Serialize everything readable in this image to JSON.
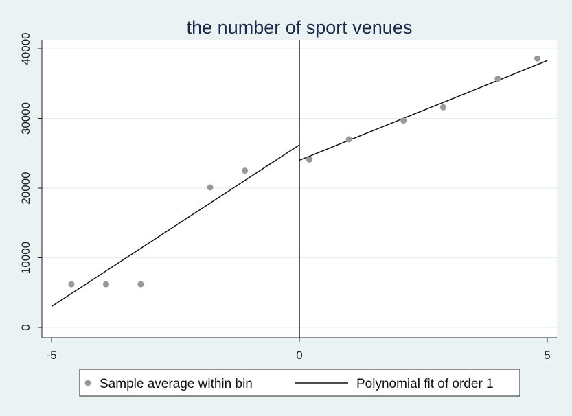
{
  "chart_data": {
    "type": "scatter",
    "title": "the number of sport venues",
    "xlabel": "",
    "ylabel": "",
    "xlim": [
      -5,
      5
    ],
    "ylim": [
      0,
      40000
    ],
    "x_ticks": [
      -5,
      0,
      5
    ],
    "y_ticks": [
      0,
      10000,
      20000,
      30000,
      40000
    ],
    "x_tick_labels": [
      "-5",
      "0",
      "5"
    ],
    "y_tick_labels": [
      "0",
      "10000",
      "20000",
      "30000",
      "40000"
    ],
    "grid": true,
    "cutoff": 0,
    "legend": {
      "placement": "bottom",
      "entries": [
        "Sample average within bin",
        "Polynomial fit of order 1"
      ]
    },
    "series": [
      {
        "name": "Sample average within bin",
        "kind": "scatter",
        "color": "#999999",
        "x": [
          -4.6,
          -3.9,
          -3.2,
          -1.8,
          -1.1,
          0.2,
          1.0,
          2.1,
          2.9,
          4.0,
          4.8
        ],
        "y": [
          6200,
          6200,
          6200,
          20100,
          22500,
          24100,
          27000,
          29700,
          31600,
          35700,
          38600
        ]
      },
      {
        "name": "Polynomial fit of order 1",
        "kind": "line",
        "color": "#111111",
        "segments": [
          {
            "x": [
              -5,
              0
            ],
            "y": [
              3000,
              26200
            ]
          },
          {
            "x": [
              0,
              5
            ],
            "y": [
              24000,
              38300
            ]
          }
        ]
      }
    ]
  }
}
